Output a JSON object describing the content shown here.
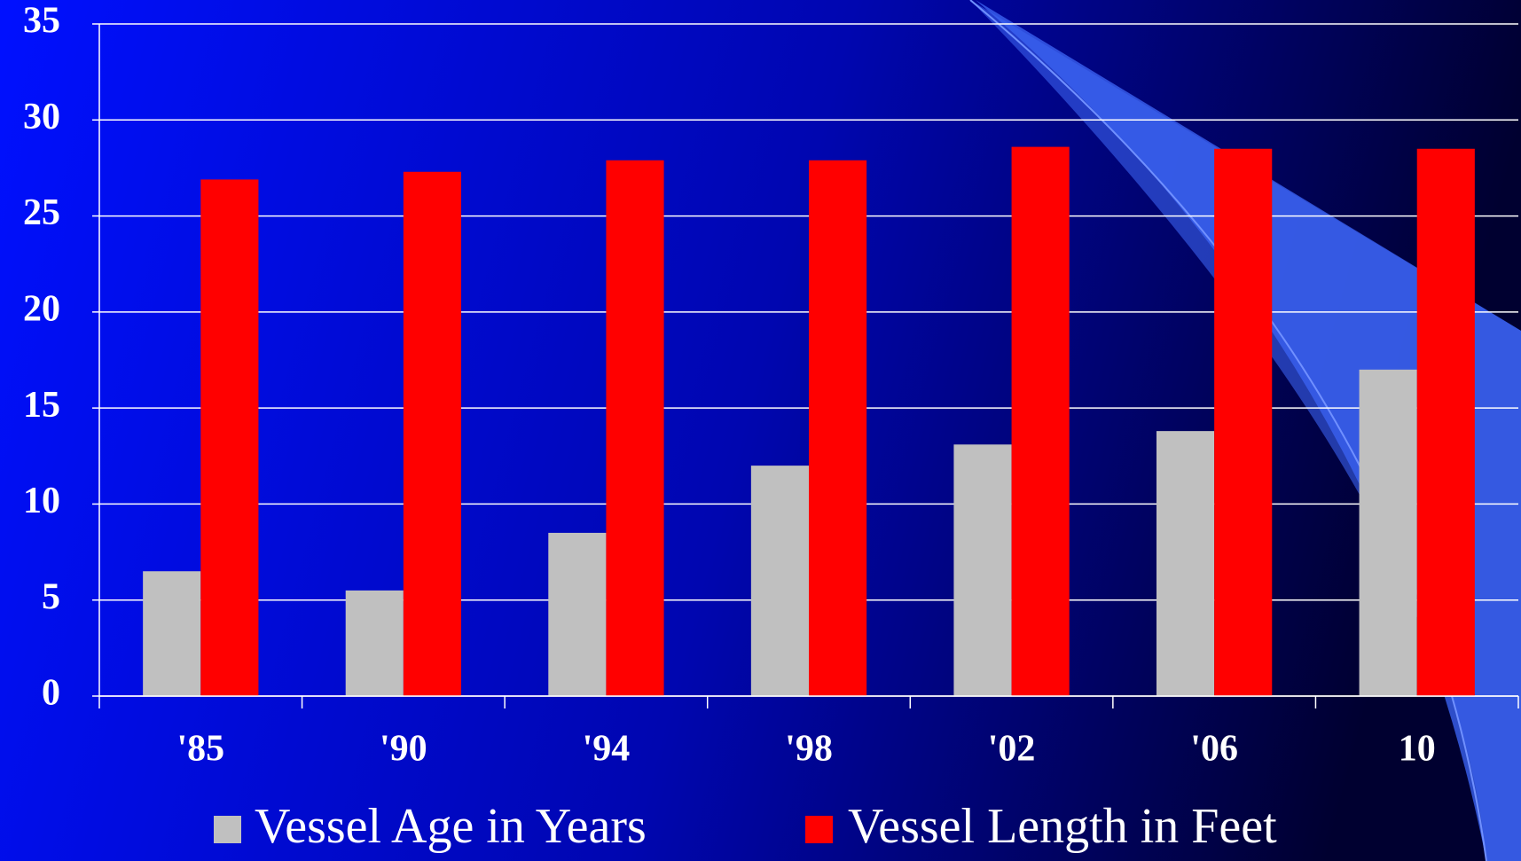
{
  "chart_data": {
    "type": "bar",
    "categories": [
      "'85",
      "'90",
      "'94",
      "'98",
      "'02",
      "'06",
      "10"
    ],
    "series": [
      {
        "name": "Vessel Age in Years",
        "color": "#c0c0c0",
        "values": [
          6.5,
          5.5,
          8.5,
          12,
          13.1,
          13.8,
          17
        ]
      },
      {
        "name": "Vessel Length in Feet",
        "color": "#ff0000",
        "values": [
          26.9,
          27.3,
          27.9,
          27.9,
          28.6,
          28.5,
          28.5
        ]
      }
    ],
    "ylim": [
      0,
      35
    ],
    "yticks": [
      0,
      5,
      10,
      15,
      20,
      25,
      30,
      35
    ],
    "grid": true
  }
}
